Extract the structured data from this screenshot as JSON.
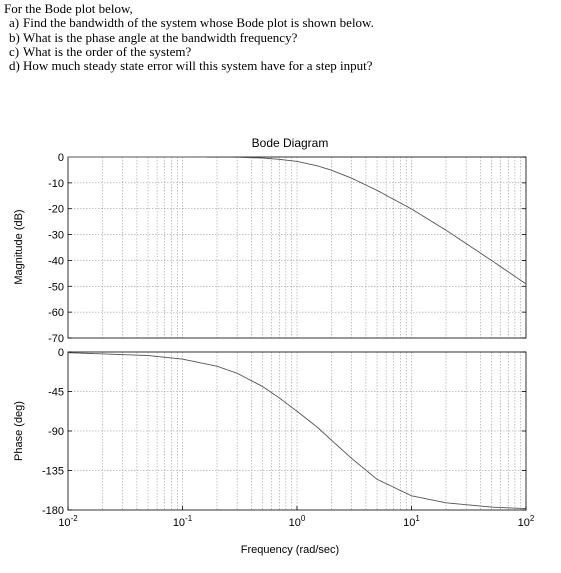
{
  "problem": {
    "intro": "For the Bode plot below,",
    "questions": [
      {
        "letter": "a)",
        "text": "Find the bandwidth of the system whose Bode plot is shown below."
      },
      {
        "letter": "b)",
        "text": "What is the phase angle at the bandwidth frequency?"
      },
      {
        "letter": "c)",
        "text": "What is the order of the system?"
      },
      {
        "letter": "d)",
        "text": "How much steady state error will this system have for a step input?"
      }
    ]
  },
  "chart_data": {
    "type": "line",
    "title": "Bode Diagram",
    "xlabel": "Frequency (rad/sec)",
    "x_scale": "log",
    "xlim": [
      0.01,
      100
    ],
    "x_ticks": [
      {
        "base": "10",
        "exp": "-2"
      },
      {
        "base": "10",
        "exp": "-1"
      },
      {
        "base": "10",
        "exp": "0"
      },
      {
        "base": "10",
        "exp": "1"
      },
      {
        "base": "10",
        "exp": "2"
      }
    ],
    "grid": true,
    "magnitude": {
      "ylabel": "Magnitude (dB)",
      "ylim": [
        -70,
        0
      ],
      "y_ticks": [
        "0",
        "-10",
        "-20",
        "-30",
        "-40",
        "-50",
        "-60",
        "-70"
      ],
      "x": [
        0.01,
        0.1,
        0.3,
        0.5,
        0.7,
        1,
        1.5,
        2,
        3,
        5,
        10,
        20,
        50,
        100
      ],
      "y": [
        0,
        0,
        -0.1,
        -0.4,
        -0.9,
        -1.7,
        -3.4,
        -5.1,
        -8.2,
        -12.9,
        -20.1,
        -28.3,
        -40.0,
        -49.1
      ]
    },
    "phase": {
      "ylabel": "Phase (deg)",
      "ylim": [
        -180,
        0
      ],
      "y_ticks": [
        "0",
        "-45",
        "-90",
        "-135",
        "-180"
      ],
      "x": [
        0.01,
        0.05,
        0.1,
        0.2,
        0.3,
        0.5,
        0.7,
        1,
        1.5,
        2,
        3,
        5,
        10,
        20,
        50,
        100
      ],
      "y": [
        -0.8,
        -4.0,
        -8.1,
        -16.2,
        -24.2,
        -39.3,
        -52.3,
        -67.5,
        -85.6,
        -100.5,
        -121.2,
        -145.0,
        -163.8,
        -171.8,
        -176.7,
        -178.4
      ]
    }
  }
}
